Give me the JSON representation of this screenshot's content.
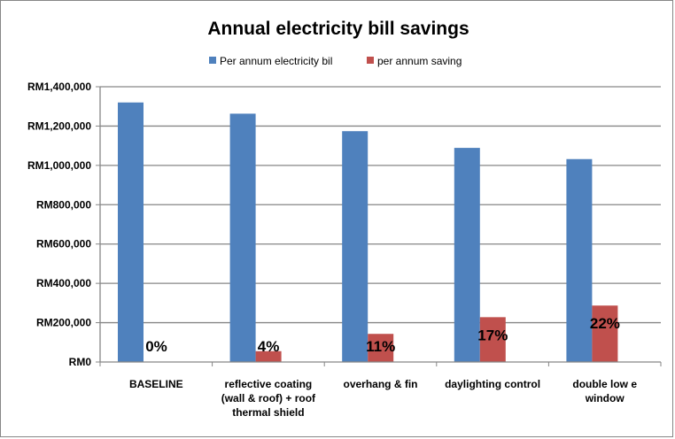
{
  "chart_data": {
    "type": "bar",
    "title": "Annual electricity bill savings",
    "xlabel": "",
    "ylabel": "",
    "categories": [
      [
        "BASELINE"
      ],
      [
        "reflective coating",
        "(wall & roof)  + roof",
        "thermal shield"
      ],
      [
        "overhang & fin"
      ],
      [
        "daylighting control"
      ],
      [
        "double low e",
        "window"
      ]
    ],
    "series": [
      {
        "name": "Per annum electricity bil",
        "color": "#4F81BD",
        "values": [
          1320000,
          1263000,
          1174000,
          1089000,
          1032000
        ]
      },
      {
        "name": "per annum saving",
        "color": "#C0504D",
        "values": [
          0,
          55000,
          143000,
          228000,
          287000
        ],
        "data_labels": [
          "0%",
          "4%",
          "11%",
          "17%",
          "22%"
        ]
      }
    ],
    "ylim": [
      0,
      1400000
    ],
    "yticks": [
      0,
      200000,
      400000,
      600000,
      800000,
      1000000,
      1200000,
      1400000
    ],
    "ytick_labels": [
      "RM0",
      "RM200,000",
      "RM400,000",
      "RM600,000",
      "RM800,000",
      "RM1,000,000",
      "RM1,200,000",
      "RM1,400,000"
    ],
    "grid": true,
    "legend_position": "top"
  }
}
